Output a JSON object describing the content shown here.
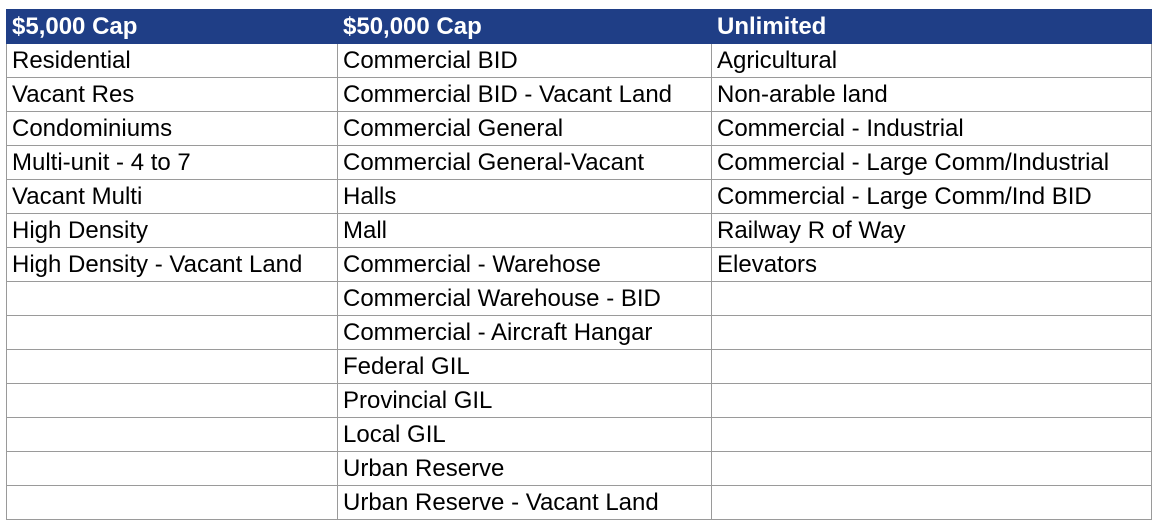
{
  "table": {
    "headers": [
      "$5,000 Cap",
      "$50,000 Cap",
      "Unlimited"
    ],
    "rows": [
      [
        "Residential",
        "Commercial BID",
        "Agricultural"
      ],
      [
        "Vacant Res",
        "Commercial BID - Vacant Land",
        "Non-arable land"
      ],
      [
        "Condominiums",
        "Commercial General",
        "Commercial - Industrial"
      ],
      [
        "Multi-unit - 4 to 7",
        "Commercial General-Vacant",
        "Commercial - Large Comm/Industrial"
      ],
      [
        "Vacant Multi",
        "Halls",
        "Commercial - Large Comm/Ind BID"
      ],
      [
        "High Density",
        "Mall",
        "Railway R of Way"
      ],
      [
        "High Density - Vacant Land",
        "Commercial - Warehose",
        "Elevators"
      ],
      [
        "",
        "Commercial Warehouse - BID",
        ""
      ],
      [
        "",
        "Commercial - Aircraft Hangar",
        ""
      ],
      [
        "",
        "Federal GIL",
        ""
      ],
      [
        "",
        "Provincial GIL",
        ""
      ],
      [
        "",
        "Local GIL",
        ""
      ],
      [
        "",
        "Urban Reserve",
        ""
      ],
      [
        "",
        "Urban Reserve - Vacant Land",
        ""
      ]
    ]
  },
  "colors": {
    "header_bg": "#1f3e86",
    "header_text": "#ffffff",
    "grid": "#9a9a9a"
  }
}
